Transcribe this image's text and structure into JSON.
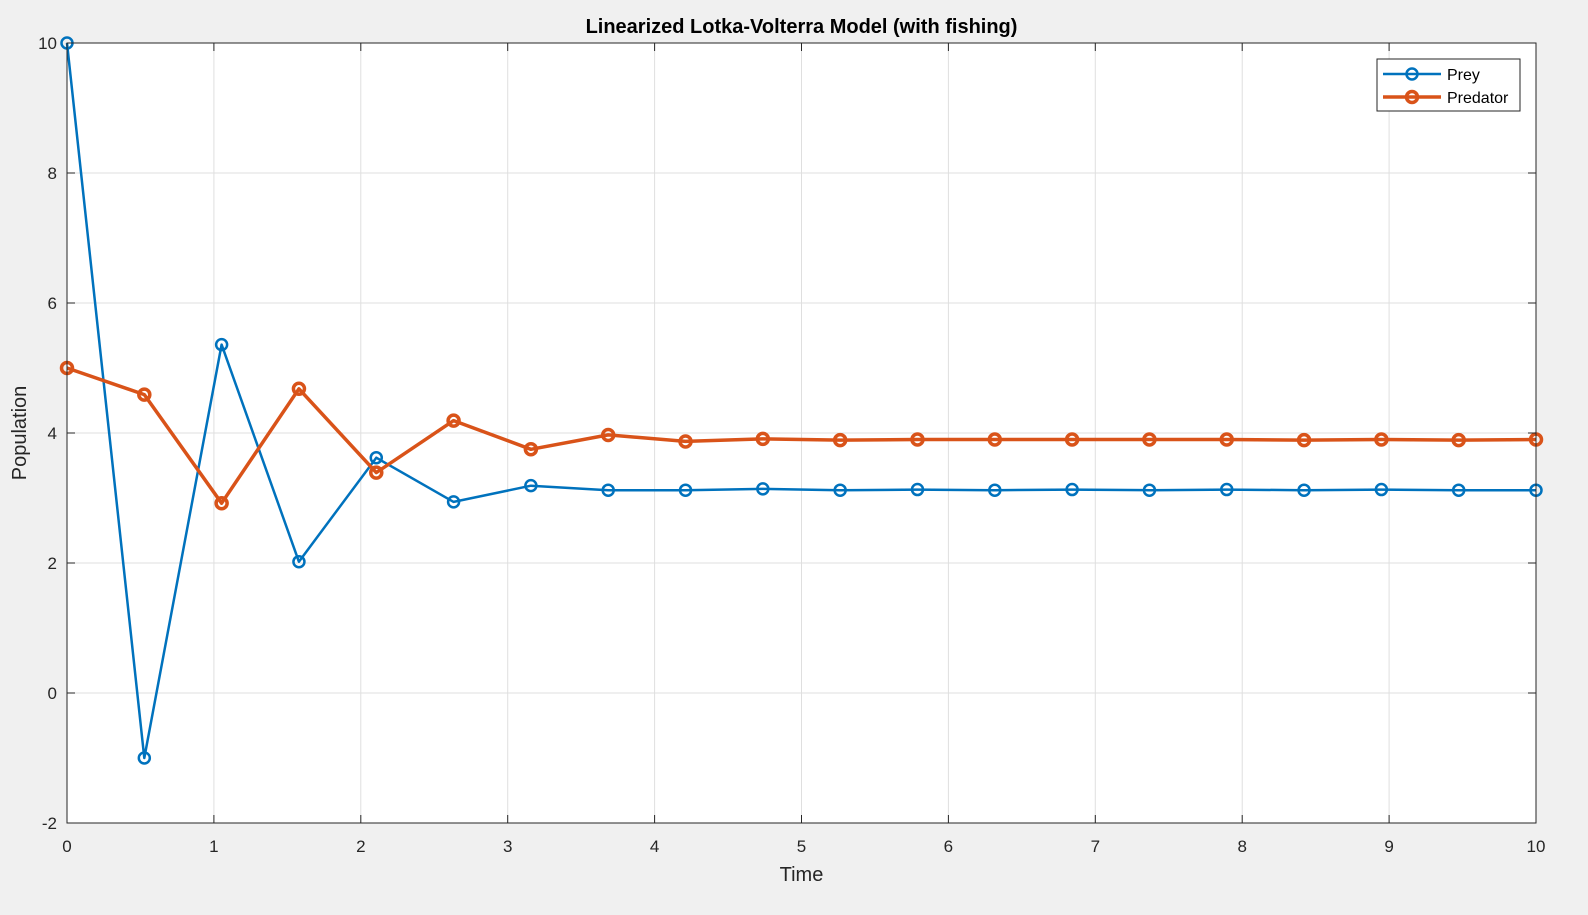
{
  "chart_data": {
    "type": "line",
    "title": "Linearized Lotka-Volterra Model (with fishing)",
    "xlabel": "Time",
    "ylabel": "Population",
    "xlim": [
      0,
      10
    ],
    "ylim": [
      -2,
      10
    ],
    "xticks": [
      0,
      1,
      2,
      3,
      4,
      5,
      6,
      7,
      8,
      9,
      10
    ],
    "yticks": [
      -2,
      0,
      2,
      4,
      6,
      8,
      10
    ],
    "grid": true,
    "legend_position": "top-right",
    "x": [
      0,
      0.5263,
      1.0526,
      1.5789,
      2.1053,
      2.6316,
      3.1579,
      3.6842,
      4.2105,
      4.7368,
      5.2632,
      5.7895,
      6.3158,
      6.8421,
      7.3684,
      7.8947,
      8.4211,
      8.9474,
      9.4737,
      10
    ],
    "series": [
      {
        "name": "Prey",
        "color": "#0072BD",
        "marker": "circle",
        "values": [
          10,
          -1.0,
          5.36,
          2.02,
          3.62,
          2.94,
          3.19,
          3.12,
          3.12,
          3.14,
          3.12,
          3.13,
          3.12,
          3.13,
          3.12,
          3.13,
          3.12,
          3.13,
          3.12,
          3.12
        ]
      },
      {
        "name": "Predator",
        "color": "#D95319",
        "marker": "circle",
        "values": [
          5,
          4.59,
          2.92,
          4.68,
          3.39,
          4.19,
          3.75,
          3.97,
          3.87,
          3.91,
          3.89,
          3.9,
          3.9,
          3.9,
          3.9,
          3.9,
          3.89,
          3.9,
          3.89,
          3.9
        ]
      }
    ]
  }
}
